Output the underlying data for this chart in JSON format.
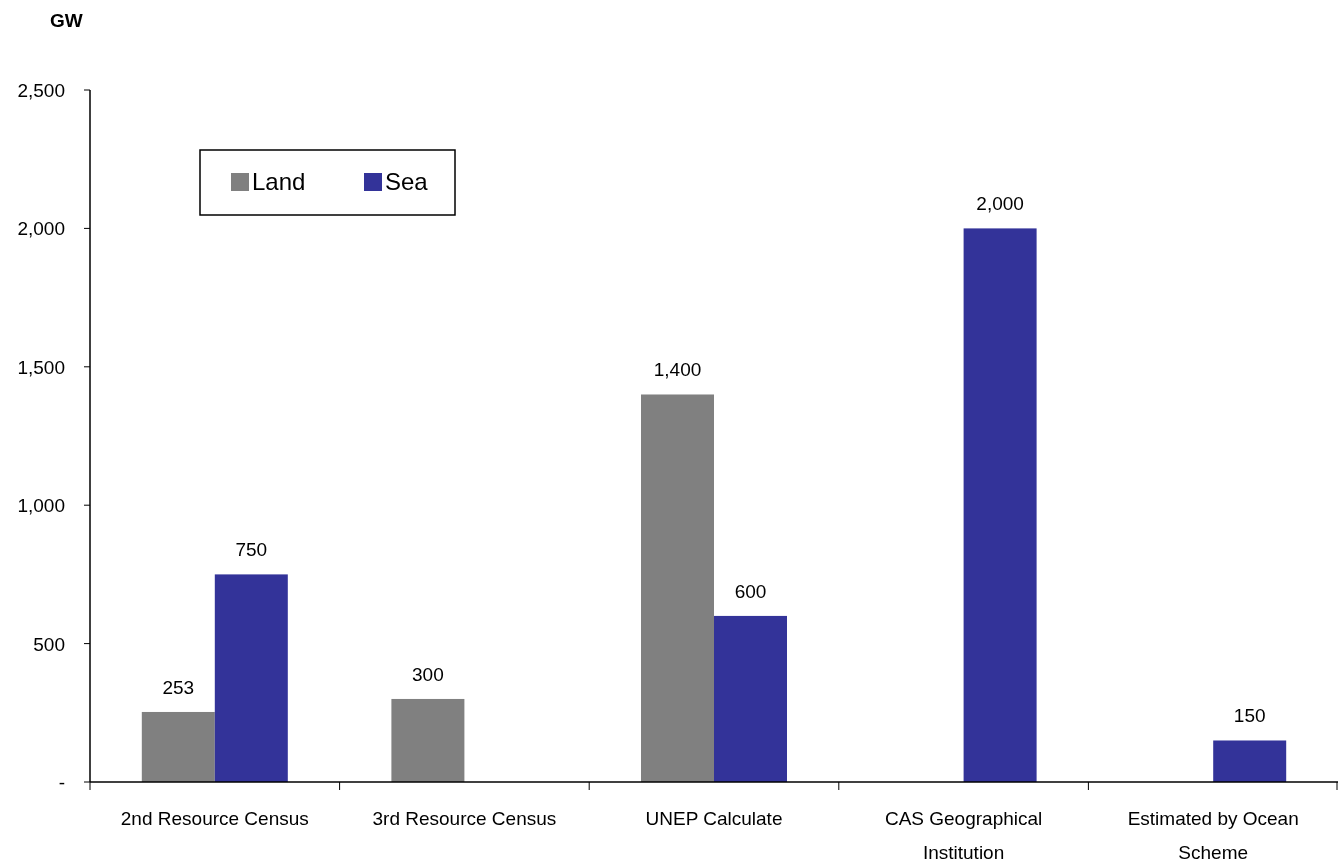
{
  "chart_data": {
    "type": "bar",
    "ylabel": "GW",
    "categories": [
      "2nd Resource Census",
      "3rd Resource Census",
      "UNEP Calculate",
      "CAS Geographical Institution",
      "Estimated by Ocean Scheme"
    ],
    "series": [
      {
        "name": "Land",
        "color": "#808080",
        "values": [
          253,
          300,
          1400,
          null,
          null
        ],
        "value_labels": [
          "253",
          "300",
          "1,400",
          null,
          null
        ]
      },
      {
        "name": "Sea",
        "color": "#333399",
        "values": [
          750,
          null,
          600,
          2000,
          150
        ],
        "value_labels": [
          "750",
          null,
          "600",
          "2,000",
          "150"
        ]
      }
    ],
    "ylim": [
      0,
      2500
    ],
    "yticks": [
      {
        "value": 0,
        "label": "-"
      },
      500,
      {
        "value": 1000,
        "label": "1,000"
      },
      {
        "value": 1500,
        "label": "1,500"
      },
      {
        "value": 2000,
        "label": "2,000"
      },
      {
        "value": 2500,
        "label": "2,500"
      }
    ],
    "legend": "top left",
    "grid": false
  }
}
